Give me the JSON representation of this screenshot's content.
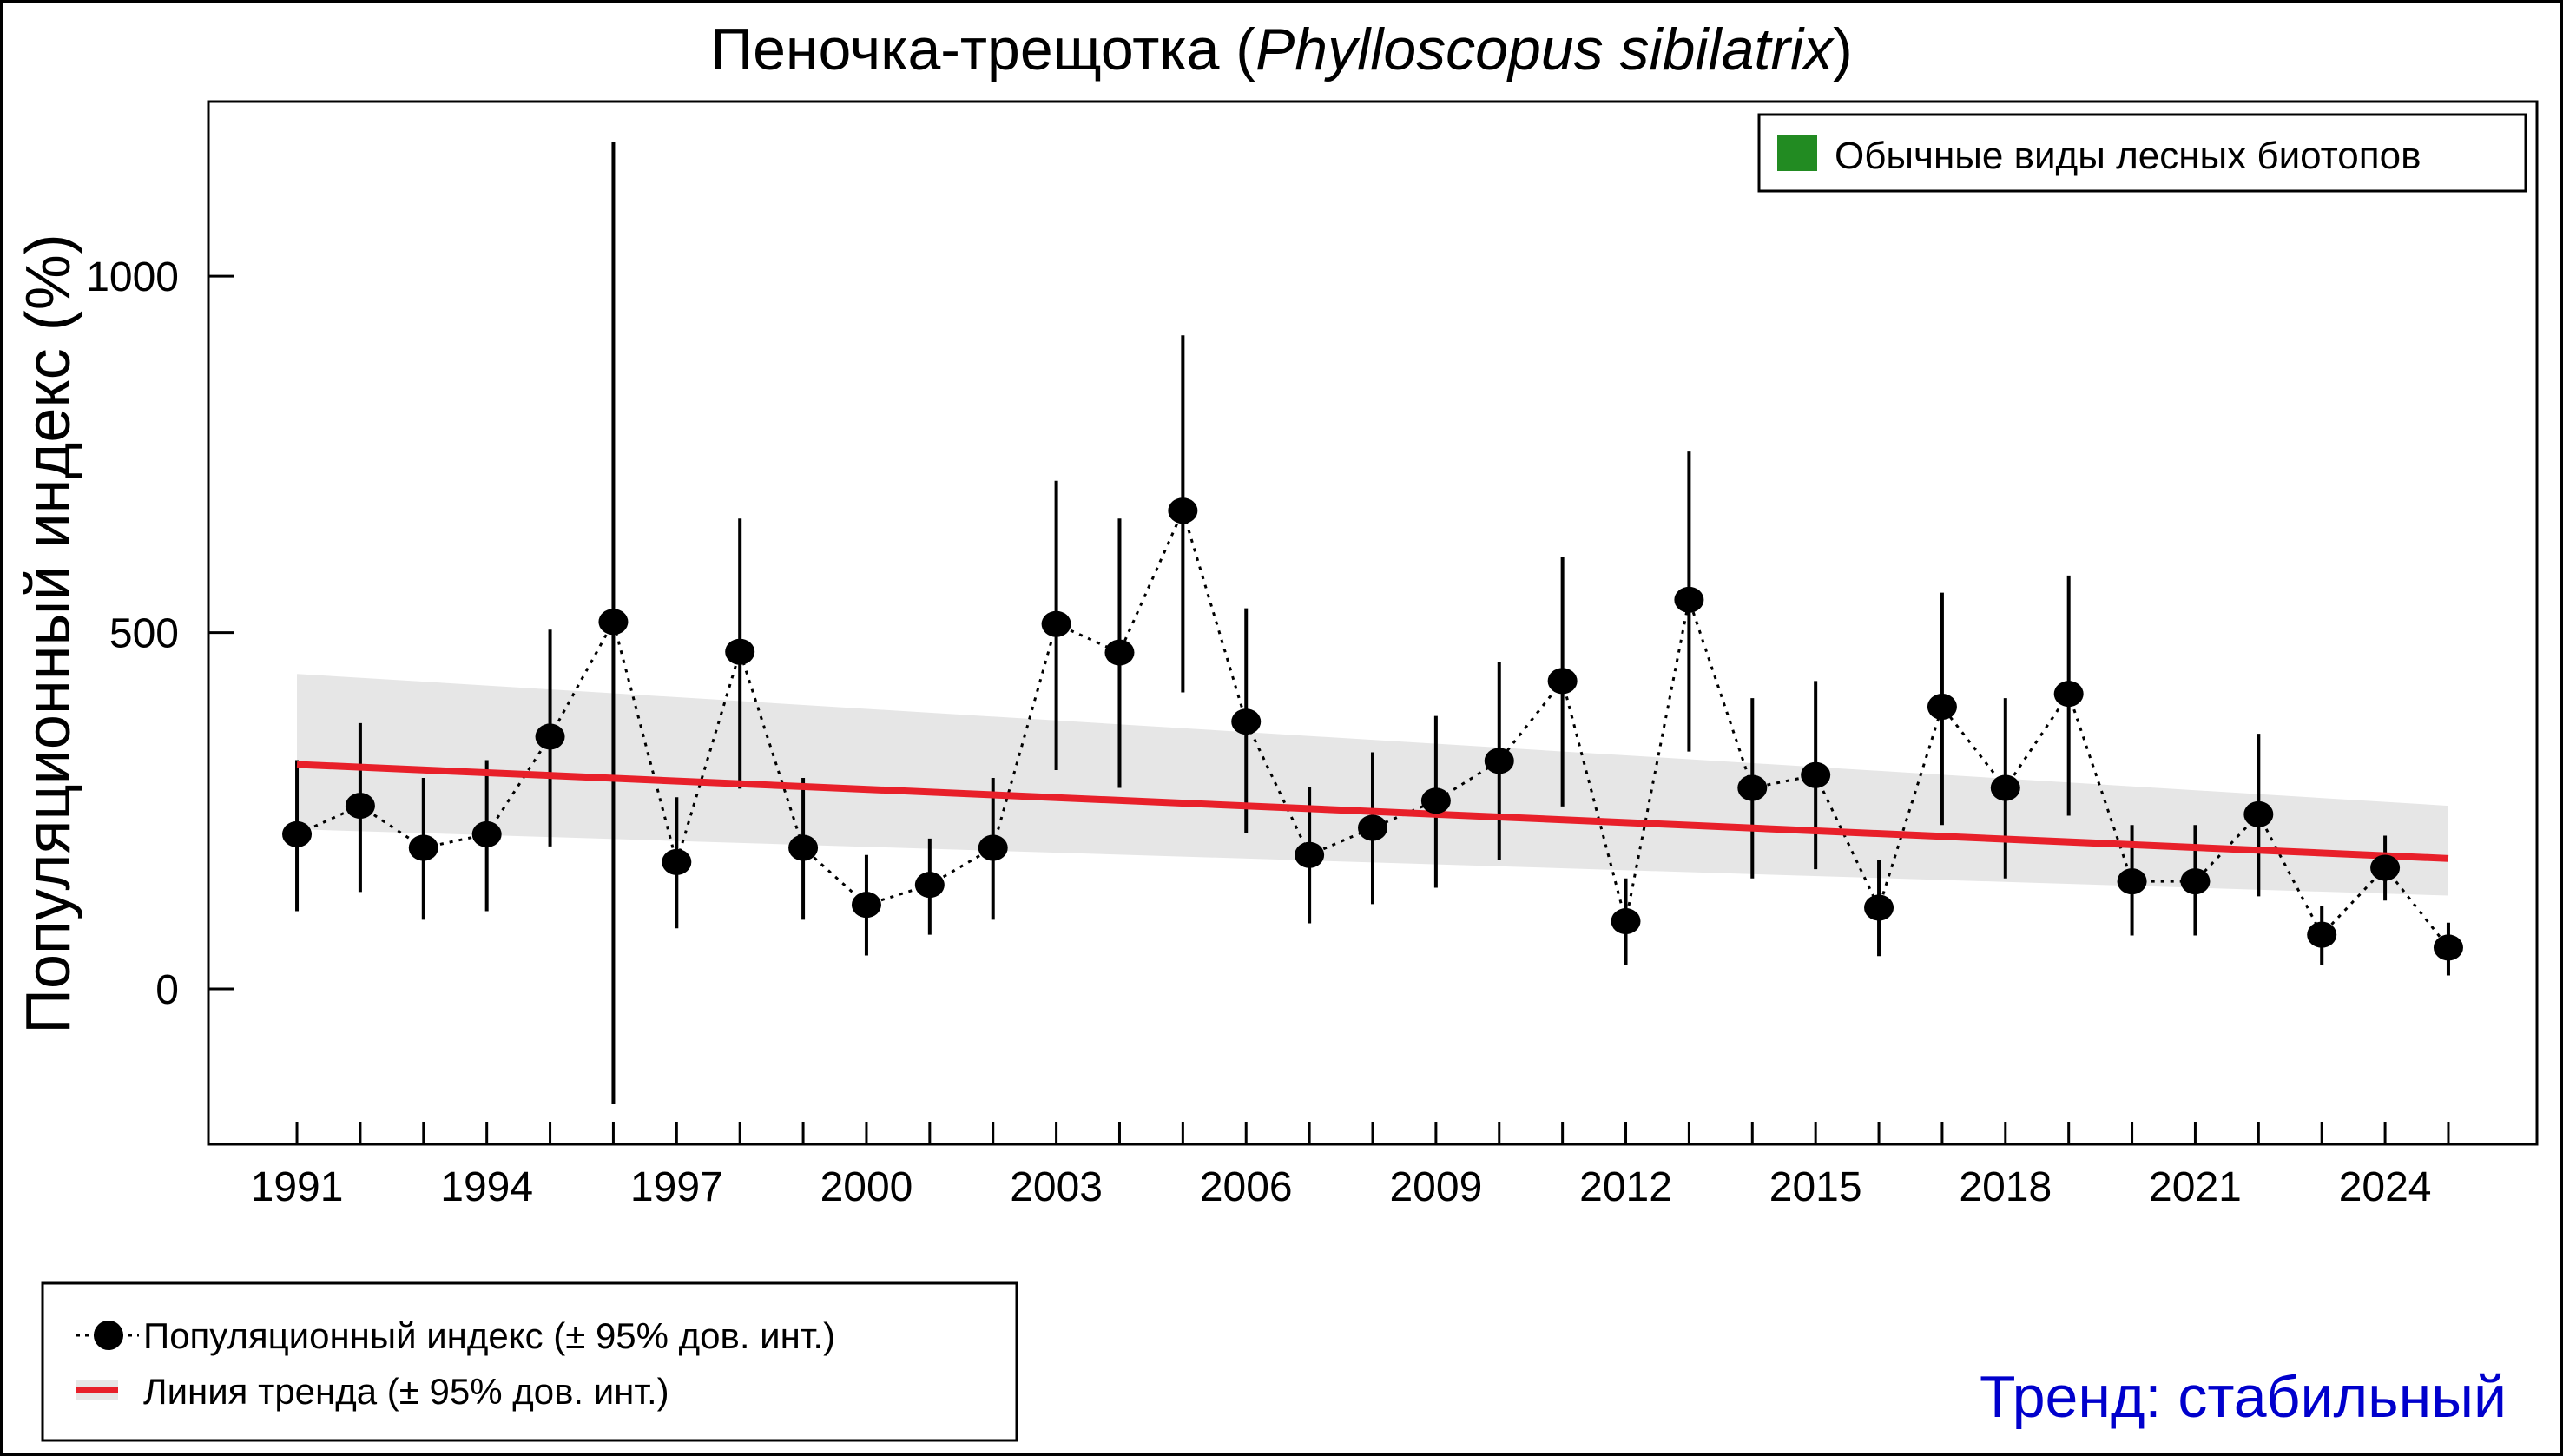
{
  "chart_data": {
    "type": "line",
    "title_main": "Пеночка-трещотка (",
    "title_italic": "Phylloscopus sibilatrix",
    "title_close": ")",
    "xlabel": "",
    "ylabel": "Популяционный индекс (%)",
    "xlim": [
      1989.6,
      2026.4
    ],
    "ylim": [
      -218,
      1245
    ],
    "y_ticks": [
      0,
      500,
      1000
    ],
    "x_tick_labels": [
      1991,
      1994,
      1997,
      2000,
      2003,
      2006,
      2009,
      2012,
      2015,
      2018,
      2021,
      2024
    ],
    "grid": false,
    "x": [
      1991,
      1992,
      1993,
      1994,
      1995,
      1996,
      1997,
      1998,
      1999,
      2000,
      2001,
      2002,
      2003,
      2004,
      2005,
      2006,
      2007,
      2008,
      2009,
      2010,
      2011,
      2012,
      2013,
      2014,
      2015,
      2016,
      2017,
      2018,
      2019,
      2020,
      2021,
      2022,
      2023,
      2024,
      2025
    ],
    "index": [
      217,
      257,
      198,
      217,
      354,
      515,
      178,
      473,
      198,
      118,
      146,
      198,
      512,
      472,
      671,
      375,
      188,
      226,
      264,
      320,
      432,
      95,
      546,
      282,
      300,
      114,
      396,
      282,
      414,
      151,
      151,
      245,
      76,
      170,
      58
    ],
    "ci_low": [
      109,
      136,
      97,
      109,
      200,
      -161,
      85,
      281,
      97,
      47,
      76,
      97,
      307,
      282,
      416,
      219,
      92,
      119,
      142,
      181,
      256,
      34,
      333,
      155,
      168,
      46,
      230,
      155,
      243,
      75,
      75,
      130,
      34,
      124,
      19
    ],
    "ci_high": [
      321,
      373,
      296,
      321,
      504,
      1188,
      269,
      660,
      296,
      188,
      211,
      296,
      713,
      660,
      917,
      534,
      283,
      332,
      383,
      458,
      606,
      155,
      754,
      408,
      432,
      181,
      556,
      408,
      580,
      230,
      230,
      358,
      117,
      215,
      93
    ],
    "trend": {
      "x": [
        1991,
        2025
      ],
      "y": [
        315,
        183
      ],
      "ci_low": [
        224,
        131
      ],
      "ci_high": [
        442,
        257
      ]
    },
    "colors": {
      "points": "#000000",
      "trend": "#e8202a",
      "trend_band": "#e6e6e6",
      "group": "#228b22",
      "trend_text": "#0000cc"
    },
    "group_legend": {
      "label": "Обычные виды лесных биотопов",
      "position": "top-right"
    },
    "legend": {
      "position": "bottom-left",
      "entries": [
        {
          "label": "Популяционный индекс (± 95% дов. инт.)"
        },
        {
          "label": "Линия тренда (± 95% дов. инт.)"
        }
      ]
    },
    "trend_label": "Тренд: стабильный"
  }
}
